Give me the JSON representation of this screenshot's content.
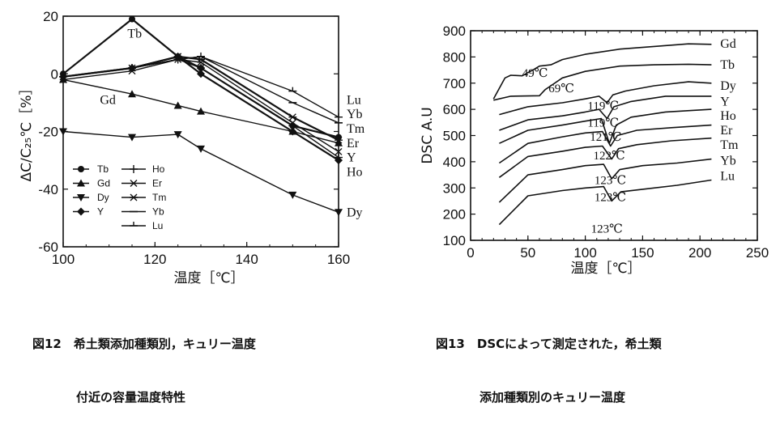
{
  "chart_data": [
    {
      "type": "line",
      "caption_lines": [
        "図12　希土類添加種類別，キュリー温度",
        "付近の容量温度特性"
      ],
      "xlabel": "温度［℃］",
      "ylabel": "ΔC/C₂₅℃［%］",
      "xlim": [
        100,
        160
      ],
      "ylim": [
        -60,
        20
      ],
      "xticks": [
        100,
        120,
        140,
        160
      ],
      "yticks": [
        20,
        0,
        -20,
        -40,
        -60
      ],
      "legend": {
        "placement": "lower-left",
        "col1": [
          "Tb",
          "Gd",
          "Dy",
          "Y"
        ],
        "col2": [
          "Ho",
          "Er",
          "Tm",
          "Yb",
          "Lu"
        ]
      },
      "series": [
        {
          "name": "Tb",
          "marker": "circle",
          "x": [
            100,
            115,
            125,
            130,
            150,
            160
          ],
          "y": [
            0,
            19,
            6,
            2,
            -18,
            -22
          ]
        },
        {
          "name": "Gd",
          "marker": "triangle-up",
          "x": [
            100,
            115,
            125,
            130,
            150,
            160
          ],
          "y": [
            -2,
            -7,
            -11,
            -13,
            -20,
            -24
          ]
        },
        {
          "name": "Dy",
          "marker": "triangle-down",
          "x": [
            100,
            115,
            125,
            130,
            150,
            160
          ],
          "y": [
            -20,
            -22,
            -21,
            -26,
            -42,
            -48
          ]
        },
        {
          "name": "Y",
          "marker": "diamond",
          "x": [
            100,
            115,
            125,
            130,
            150,
            160
          ],
          "y": [
            -1,
            2,
            6,
            0,
            -20,
            -30
          ]
        },
        {
          "name": "Ho",
          "marker": "plus",
          "x": [
            100,
            115,
            125,
            130,
            150,
            160
          ],
          "y": [
            -1,
            2,
            5,
            2,
            -18,
            -29
          ]
        },
        {
          "name": "Er",
          "marker": "x",
          "x": [
            100,
            115,
            125,
            130,
            150,
            160
          ],
          "y": [
            -2,
            1,
            5,
            4,
            -17,
            -27
          ]
        },
        {
          "name": "Tm",
          "marker": "star",
          "x": [
            100,
            115,
            125,
            130,
            150,
            160
          ],
          "y": [
            -1,
            2,
            6,
            5,
            -15,
            -23
          ]
        },
        {
          "name": "Yb",
          "marker": "dash",
          "x": [
            100,
            115,
            125,
            130,
            150,
            160
          ],
          "y": [
            -1,
            2,
            5,
            6,
            -10,
            -17
          ]
        },
        {
          "name": "Lu",
          "marker": "tick",
          "x": [
            100,
            115,
            125,
            130,
            150,
            160
          ],
          "y": [
            -1,
            2,
            5,
            6,
            -6,
            -15
          ]
        }
      ],
      "end_labels": [
        {
          "text": "Lu",
          "y": -9
        },
        {
          "text": "Yb",
          "y": -14
        },
        {
          "text": "Tm",
          "y": -19
        },
        {
          "text": "Er",
          "y": -24
        },
        {
          "text": "Y",
          "y": -29
        },
        {
          "text": "Ho",
          "y": -34
        },
        {
          "text": "Dy",
          "y": -48
        }
      ],
      "inline_labels": [
        {
          "text": "Tb",
          "x": 114,
          "y": 14
        },
        {
          "text": "Gd",
          "x": 108,
          "y": -9
        }
      ]
    },
    {
      "type": "line",
      "caption_lines": [
        "図13　DSCによって測定された，希土類",
        "添加種類別のキュリー温度"
      ],
      "xlabel": "温度［℃］",
      "ylabel": "DSC A.U",
      "xlim": [
        0,
        250
      ],
      "ylim": [
        100,
        900
      ],
      "xticks": [
        0,
        50,
        100,
        150,
        200,
        250
      ],
      "yticks": [
        100,
        200,
        300,
        400,
        500,
        600,
        700,
        800,
        900
      ],
      "series": [
        {
          "name": "Gd",
          "points": [
            [
              20,
              640
            ],
            [
              30,
              720
            ],
            [
              35,
              730
            ],
            [
              45,
              728
            ],
            [
              55,
              752
            ],
            [
              60,
              765
            ],
            [
              70,
              770
            ],
            [
              80,
              790
            ],
            [
              100,
              810
            ],
            [
              130,
              830
            ],
            [
              160,
              840
            ],
            [
              190,
              850
            ],
            [
              210,
              848
            ]
          ]
        },
        {
          "name": "Tb",
          "points": [
            [
              20,
              635
            ],
            [
              35,
              650
            ],
            [
              60,
              652
            ],
            [
              65,
              675
            ],
            [
              70,
              690
            ],
            [
              80,
              720
            ],
            [
              100,
              745
            ],
            [
              130,
              765
            ],
            [
              160,
              770
            ],
            [
              190,
              772
            ],
            [
              210,
              770
            ]
          ]
        },
        {
          "name": "Dy",
          "points": [
            [
              25,
              580
            ],
            [
              50,
              610
            ],
            [
              80,
              625
            ],
            [
              100,
              640
            ],
            [
              112,
              650
            ],
            [
              119,
              625
            ],
            [
              124,
              655
            ],
            [
              135,
              670
            ],
            [
              160,
              690
            ],
            [
              190,
              705
            ],
            [
              210,
              700
            ]
          ]
        },
        {
          "name": "Y",
          "points": [
            [
              25,
              520
            ],
            [
              50,
              560
            ],
            [
              80,
              575
            ],
            [
              100,
              590
            ],
            [
              112,
              600
            ],
            [
              119,
              565
            ],
            [
              125,
              610
            ],
            [
              140,
              630
            ],
            [
              170,
              650
            ],
            [
              210,
              650
            ]
          ]
        },
        {
          "name": "Ho",
          "points": [
            [
              25,
              470
            ],
            [
              50,
              520
            ],
            [
              80,
              540
            ],
            [
              100,
              555
            ],
            [
              114,
              565
            ],
            [
              121,
              470
            ],
            [
              127,
              540
            ],
            [
              140,
              570
            ],
            [
              170,
              590
            ],
            [
              210,
              600
            ]
          ]
        },
        {
          "name": "Er",
          "points": [
            [
              25,
              395
            ],
            [
              50,
              470
            ],
            [
              80,
              495
            ],
            [
              100,
              510
            ],
            [
              115,
              515
            ],
            [
              122,
              460
            ],
            [
              128,
              500
            ],
            [
              145,
              520
            ],
            [
              175,
              530
            ],
            [
              210,
              540
            ]
          ]
        },
        {
          "name": "Tm",
          "points": [
            [
              25,
              340
            ],
            [
              50,
              420
            ],
            [
              80,
              440
            ],
            [
              100,
              455
            ],
            [
              115,
              460
            ],
            [
              123,
              410
            ],
            [
              129,
              450
            ],
            [
              145,
              465
            ],
            [
              175,
              480
            ],
            [
              210,
              490
            ]
          ]
        },
        {
          "name": "Yb",
          "points": [
            [
              25,
              245
            ],
            [
              50,
              350
            ],
            [
              80,
              370
            ],
            [
              100,
              385
            ],
            [
              116,
              390
            ],
            [
              123,
              335
            ],
            [
              130,
              370
            ],
            [
              150,
              385
            ],
            [
              180,
              395
            ],
            [
              210,
              410
            ]
          ]
        },
        {
          "name": "Lu",
          "points": [
            [
              25,
              160
            ],
            [
              50,
              270
            ],
            [
              80,
              290
            ],
            [
              100,
              300
            ],
            [
              116,
              305
            ],
            [
              123,
              250
            ],
            [
              131,
              285
            ],
            [
              150,
              295
            ],
            [
              180,
              310
            ],
            [
              210,
              330
            ]
          ]
        }
      ],
      "end_labels": [
        {
          "text": "Gd",
          "y": 850
        },
        {
          "text": "Tb",
          "y": 770
        },
        {
          "text": "Dy",
          "y": 690
        },
        {
          "text": "Y",
          "y": 630
        },
        {
          "text": "Ho",
          "y": 575
        },
        {
          "text": "Er",
          "y": 520
        },
        {
          "text": "Tm",
          "y": 465
        },
        {
          "text": "Yb",
          "y": 405
        },
        {
          "text": "Lu",
          "y": 345
        }
      ],
      "peak_labels": [
        {
          "text": "49℃",
          "x": 45,
          "y": 740
        },
        {
          "text": "69℃",
          "x": 68,
          "y": 680
        },
        {
          "text": "119℃",
          "x": 102,
          "y": 615
        },
        {
          "text": "119℃",
          "x": 102,
          "y": 550
        },
        {
          "text": "121℃",
          "x": 104,
          "y": 495
        },
        {
          "text": "122℃",
          "x": 107,
          "y": 425
        },
        {
          "text": "123℃",
          "x": 108,
          "y": 330
        },
        {
          "text": "123℃",
          "x": 108,
          "y": 265
        },
        {
          "text": "123℃",
          "x": 105,
          "y": 145
        }
      ]
    }
  ]
}
